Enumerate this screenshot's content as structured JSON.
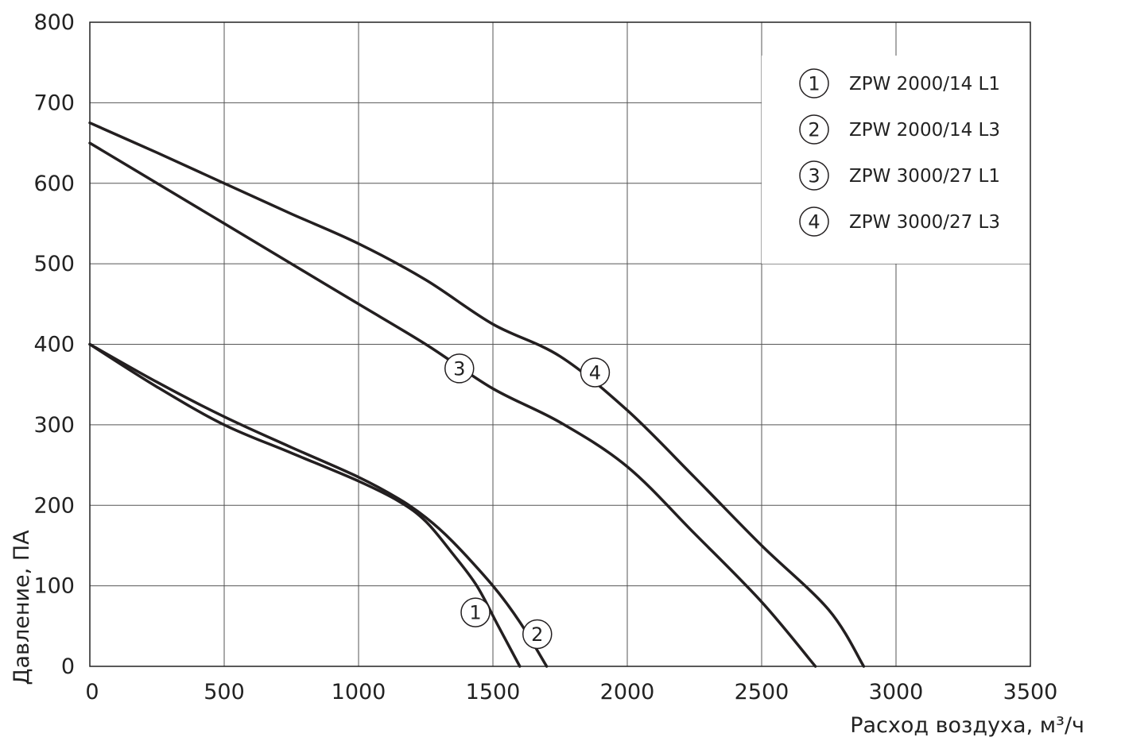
{
  "chart_data": {
    "type": "line",
    "title": "",
    "xlabel": "Расход воздуха, м³/ч",
    "ylabel": "Давление, ПА",
    "xlim": [
      0,
      3500
    ],
    "ylim": [
      0,
      800
    ],
    "x_ticks": [
      "0",
      "500",
      "1000",
      "1500",
      "2000",
      "2500",
      "3000",
      "3500"
    ],
    "y_ticks": [
      "0",
      "100",
      "200",
      "300",
      "400",
      "500",
      "600",
      "700",
      "800"
    ],
    "grid": true,
    "legend_position": "top-right",
    "legend": [
      {
        "marker": "1",
        "label": "ZPW 2000/14 L1"
      },
      {
        "marker": "2",
        "label": "ZPW 2000/14 L3"
      },
      {
        "marker": "3",
        "label": "ZPW 3000/27 L1"
      },
      {
        "marker": "4",
        "label": "ZPW 3000/27 L3"
      }
    ],
    "series": [
      {
        "name": "ZPW 2000/14 L1",
        "marker_label": "1",
        "label_at": [
          1435,
          67
        ],
        "points": [
          [
            0,
            400
          ],
          [
            250,
            347
          ],
          [
            500,
            300
          ],
          [
            750,
            265
          ],
          [
            1000,
            230
          ],
          [
            1150,
            205
          ],
          [
            1250,
            180
          ],
          [
            1350,
            140
          ],
          [
            1440,
            100
          ],
          [
            1520,
            50
          ],
          [
            1600,
            0
          ]
        ]
      },
      {
        "name": "ZPW 2000/14 L3",
        "marker_label": "2",
        "label_at": [
          1665,
          40
        ],
        "points": [
          [
            0,
            400
          ],
          [
            250,
            353
          ],
          [
            500,
            310
          ],
          [
            750,
            272
          ],
          [
            1000,
            235
          ],
          [
            1150,
            208
          ],
          [
            1250,
            185
          ],
          [
            1350,
            155
          ],
          [
            1500,
            100
          ],
          [
            1600,
            55
          ],
          [
            1700,
            0
          ]
        ]
      },
      {
        "name": "ZPW 3000/27 L1",
        "marker_label": "3",
        "label_at": [
          1375,
          370
        ],
        "points": [
          [
            0,
            650
          ],
          [
            250,
            600
          ],
          [
            500,
            550
          ],
          [
            750,
            500
          ],
          [
            1000,
            450
          ],
          [
            1250,
            400
          ],
          [
            1500,
            345
          ],
          [
            1750,
            303
          ],
          [
            2000,
            248
          ],
          [
            2250,
            165
          ],
          [
            2500,
            80
          ],
          [
            2700,
            0
          ]
        ]
      },
      {
        "name": "ZPW 3000/27 L3",
        "marker_label": "4",
        "label_at": [
          1880,
          365
        ],
        "points": [
          [
            0,
            675
          ],
          [
            250,
            638
          ],
          [
            500,
            600
          ],
          [
            750,
            562
          ],
          [
            1000,
            525
          ],
          [
            1250,
            480
          ],
          [
            1500,
            425
          ],
          [
            1750,
            385
          ],
          [
            2000,
            318
          ],
          [
            2250,
            235
          ],
          [
            2500,
            150
          ],
          [
            2750,
            70
          ],
          [
            2880,
            0
          ]
        ]
      }
    ]
  }
}
